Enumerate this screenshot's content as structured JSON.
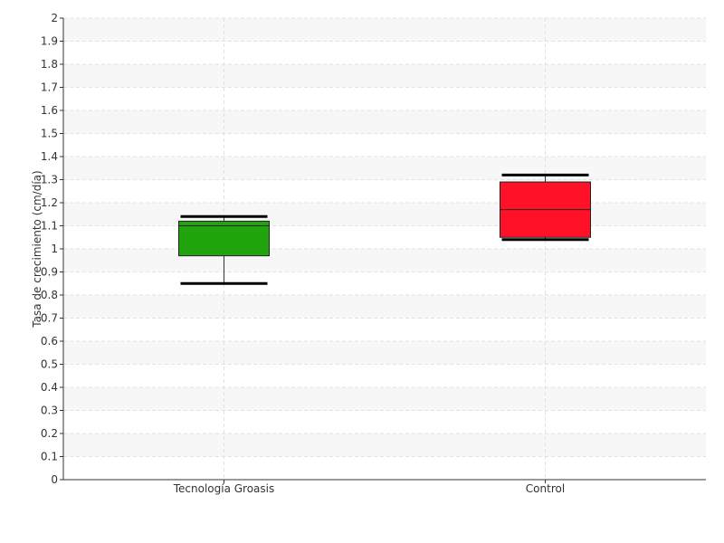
{
  "chart_data": {
    "type": "boxplot",
    "ylabel": "Tasa de crecimiento (cm/día)",
    "ylim": [
      0,
      2
    ],
    "yticks": [
      "0",
      "0.1",
      "0.2",
      "0.3",
      "0.4",
      "0.5",
      "0.6",
      "0.7",
      "0.8",
      "0.9",
      "1",
      "1.1",
      "1.2",
      "1.3",
      "1.4",
      "1.5",
      "1.6",
      "1.7",
      "1.8",
      "1.9",
      "2"
    ],
    "categories": [
      "Tecnología Groasis",
      "Control"
    ],
    "series": [
      {
        "category": "Tecnología Groasis",
        "min": 0.85,
        "q1": 0.97,
        "median": 1.1,
        "q3": 1.12,
        "max": 1.14,
        "color": "#22a40f"
      },
      {
        "category": "Control",
        "min": 1.04,
        "q1": 1.05,
        "median": 1.17,
        "q3": 1.29,
        "max": 1.32,
        "color": "#ff1128"
      }
    ],
    "grid": true,
    "band_colors": [
      "#f7f7f7",
      "#ffffff"
    ]
  }
}
